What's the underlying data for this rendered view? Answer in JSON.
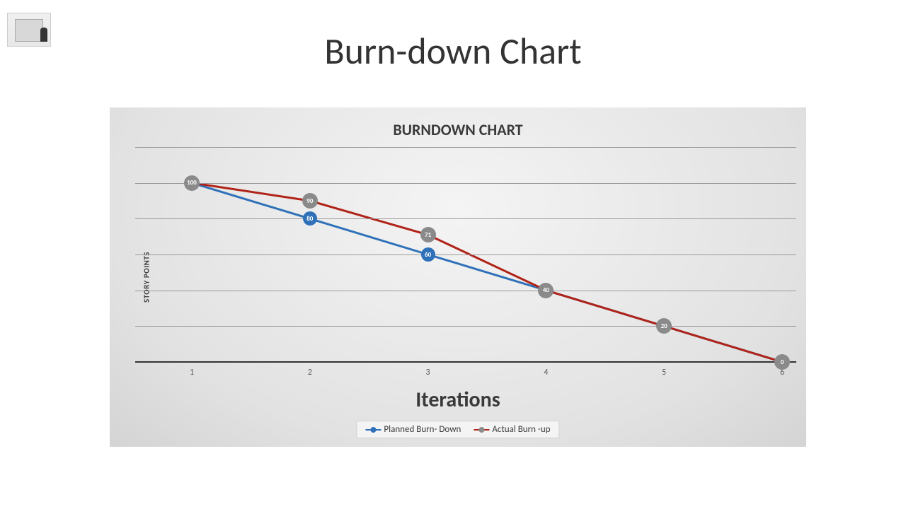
{
  "page": {
    "title": "Burn-down Chart"
  },
  "chart": {
    "type": "line",
    "title": "BURNDOWN CHART",
    "y_axis_label": "STORY POINTS",
    "x_axis_label": "Iterations",
    "title_fontsize": 22,
    "xlabel_fontsize": 30,
    "ylabel_fontsize": 11,
    "background_gradient_center": "#f4f4f4",
    "background_gradient_edge": "#d4d4d4",
    "grid_color": "#999999",
    "axis_color": "#333333",
    "text_color": "#3a3a3a",
    "x_categories": [
      "1",
      "2",
      "3",
      "4",
      "5",
      "6"
    ],
    "ylim": [
      0,
      120
    ],
    "ytick_count": 7,
    "grid_y_values": [
      0,
      20,
      40,
      60,
      80,
      100,
      120
    ],
    "marker_radius_planned": 10,
    "marker_radius_actual": 11,
    "line_width": 3,
    "series": [
      {
        "name": "Planned Burn- Down",
        "color": "#2f71b8",
        "marker_fill": "#2f71b8",
        "label_color": "#ffffff",
        "values": [
          100,
          80,
          60,
          40,
          20,
          0
        ],
        "show_labels": [
          false,
          true,
          true,
          false,
          false,
          false
        ]
      },
      {
        "name": "Actual Burn -up",
        "color": "#b02318",
        "marker_fill": "#8a8a8a",
        "label_color": "#ffffff",
        "values": [
          100,
          90,
          71,
          40,
          20,
          0
        ],
        "show_labels": [
          true,
          true,
          true,
          true,
          true,
          true
        ]
      }
    ],
    "legend_bg": "#f4f4f4",
    "legend_border": "#d0d0d0"
  }
}
